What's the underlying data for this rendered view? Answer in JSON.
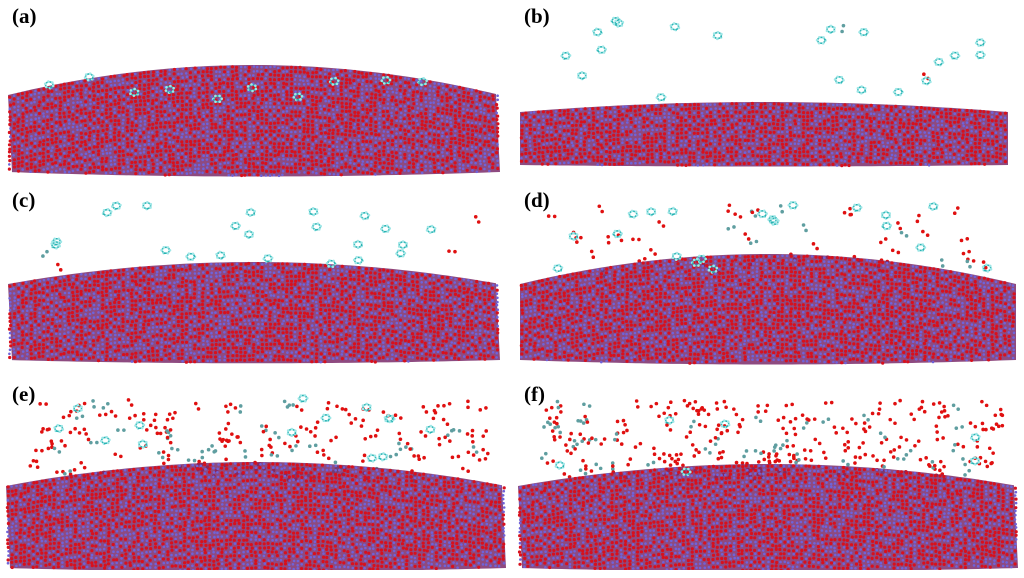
{
  "panels": [
    {
      "label": "(a)",
      "stage": 0
    },
    {
      "label": "(b)",
      "stage": 1
    },
    {
      "label": "(c)",
      "stage": 2
    },
    {
      "label": "(d)",
      "stage": 3
    },
    {
      "label": "(e)",
      "stage": 4
    },
    {
      "label": "(f)",
      "stage": 5
    }
  ],
  "colors": {
    "background": "#ffffff",
    "lattice_oxygen": "#d8101c",
    "lattice_metal": "#6f63d9",
    "molecule_carbon": "#2ab3b3",
    "molecule_hydrogen": "#9fe7e7",
    "gas_oxygen": "#e01010",
    "gas_carbon": "#5f9ea0"
  }
}
